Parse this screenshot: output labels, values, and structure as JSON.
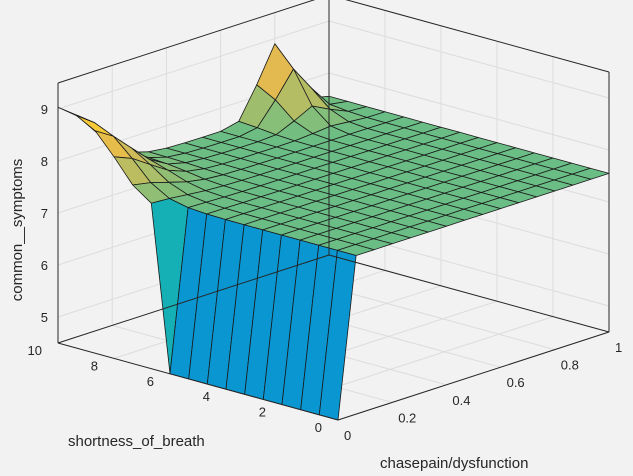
{
  "chart_data": {
    "type": "surface",
    "title": "",
    "xlabel": "chasepain/dysfunction",
    "ylabel": "shortness_of_breath",
    "zlabel": "common__symptoms",
    "xlim": [
      0,
      1
    ],
    "ylim": [
      0,
      10
    ],
    "zlim": [
      4.5,
      9.5
    ],
    "xticks": [
      "0",
      "0.2",
      "0.4",
      "0.6",
      "0.8",
      "1"
    ],
    "yticks": [
      "0",
      "2",
      "4",
      "6",
      "8",
      "10"
    ],
    "zticks": [
      "5",
      "6",
      "7",
      "8",
      "9"
    ],
    "grid": true,
    "colormap": "parula",
    "surface": {
      "x_range": [
        0,
        1
      ],
      "y_range": [
        0,
        10
      ],
      "grid_size": 16,
      "plateau_high": 9.25,
      "mid_level": 7.55,
      "low_value": 4.5,
      "peak_value": 8.9,
      "peak_at": [
        0.8,
        10
      ]
    }
  }
}
